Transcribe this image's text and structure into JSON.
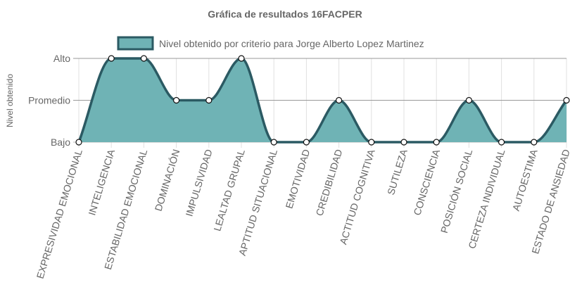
{
  "chart_data": {
    "type": "area",
    "title": "Gráfica de resultados 16FACPER",
    "ylabel": "Nivel obtenido",
    "xlabel": "",
    "y_levels": [
      "Bajo",
      "Promedio",
      "Alto"
    ],
    "ylim": [
      0,
      2
    ],
    "legend_position": "top",
    "grid": true,
    "categories": [
      "EXPRESIVIDAD EMOCIONAL",
      "INTELIGENCIA",
      "ESTABILIDAD EMOCIONAL",
      "DOMINACIÓN",
      "IMPULSIVIDAD",
      "LEALTAD GRUPAL",
      "APTITUD SITUACIONAL",
      "EMOTIVIDAD",
      "CREDIBILIDAD",
      "ACTITUD COGNITIVA",
      "SUTILEZA",
      "CONSCIENCIA",
      "POSICIÓN SOCIAL",
      "CERTEZA INDIVIDUAL",
      "AUTOESTIMA",
      "ESTADO DE ANSIEDAD"
    ],
    "series": [
      {
        "name": "Nivel obtenido por criterio para Jorge Alberto Lopez Martinez",
        "values": [
          0,
          2,
          2,
          1,
          1,
          2,
          0,
          0,
          1,
          0,
          0,
          0,
          1,
          0,
          0,
          1
        ]
      }
    ],
    "colors": {
      "fill": "#6fb3b5",
      "line": "#2b5a63",
      "point_fill": "#ffffff",
      "grid": "#e0e0e0",
      "axis": "#999999"
    }
  }
}
